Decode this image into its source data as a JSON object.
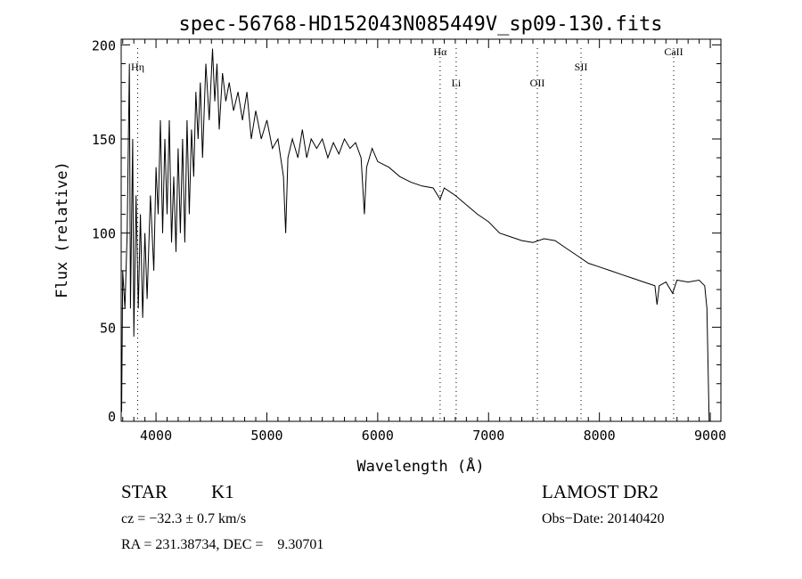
{
  "chart_data": {
    "type": "line",
    "title": "spec-56768-HD152043N085449V_sp09-130.fits",
    "xlabel": "Wavelength (Å)",
    "ylabel": "Flux (relative)",
    "xlim": [
      3686,
      9096
    ],
    "ylim": [
      0,
      203
    ],
    "xticks": [
      4000,
      5000,
      6000,
      7000,
      8000,
      9000
    ],
    "yticks": [
      0,
      50,
      100,
      150,
      200
    ],
    "grid": false,
    "lines": [
      {
        "label": "Hη",
        "wavelength": 3835,
        "label_row": 2
      },
      {
        "label": "Hα",
        "wavelength": 6563,
        "label_row": 1
      },
      {
        "label": "Li",
        "wavelength": 6708,
        "label_row": 3
      },
      {
        "label": "OII",
        "wavelength": 7440,
        "label_row": 3
      },
      {
        "label": "SII",
        "wavelength": 7834,
        "label_row": 2
      },
      {
        "label": "CaII",
        "wavelength": 8670,
        "label_row": 1
      }
    ],
    "series": [
      {
        "name": "spectrum",
        "x": [
          3690,
          3700,
          3720,
          3740,
          3760,
          3770,
          3790,
          3800,
          3820,
          3840,
          3860,
          3880,
          3900,
          3920,
          3950,
          3980,
          4000,
          4020,
          4040,
          4060,
          4080,
          4100,
          4120,
          4140,
          4160,
          4180,
          4200,
          4220,
          4240,
          4260,
          4280,
          4300,
          4320,
          4340,
          4360,
          4380,
          4400,
          4420,
          4450,
          4480,
          4510,
          4530,
          4550,
          4570,
          4600,
          4630,
          4660,
          4700,
          4740,
          4780,
          4820,
          4860,
          4900,
          4950,
          5000,
          5050,
          5100,
          5150,
          5170,
          5190,
          5230,
          5280,
          5320,
          5360,
          5400,
          5450,
          5500,
          5550,
          5600,
          5650,
          5700,
          5750,
          5800,
          5850,
          5880,
          5900,
          5950,
          6000,
          6100,
          6200,
          6300,
          6400,
          6500,
          6563,
          6600,
          6700,
          6800,
          6900,
          7000,
          7100,
          7200,
          7300,
          7400,
          7500,
          7600,
          7700,
          7800,
          7900,
          8000,
          8100,
          8200,
          8300,
          8400,
          8500,
          8520,
          8540,
          8600,
          8660,
          8700,
          8800,
          8900,
          8950,
          8970,
          8990
        ],
        "y": [
          5,
          80,
          60,
          100,
          190,
          60,
          150,
          45,
          120,
          60,
          110,
          55,
          100,
          65,
          120,
          80,
          135,
          110,
          160,
          100,
          150,
          110,
          160,
          95,
          130,
          90,
          145,
          100,
          150,
          95,
          160,
          110,
          155,
          130,
          175,
          150,
          180,
          140,
          190,
          160,
          198,
          170,
          190,
          155,
          185,
          170,
          180,
          165,
          175,
          160,
          175,
          150,
          165,
          150,
          160,
          145,
          150,
          130,
          100,
          140,
          150,
          140,
          155,
          140,
          150,
          145,
          150,
          140,
          148,
          142,
          150,
          145,
          148,
          140,
          110,
          135,
          145,
          138,
          135,
          130,
          127,
          125,
          124,
          118,
          124,
          120,
          115,
          110,
          106,
          100,
          98,
          96,
          95,
          97,
          96,
          92,
          88,
          84,
          82,
          80,
          78,
          76,
          74,
          72,
          62,
          72,
          74,
          68,
          75,
          74,
          75,
          72,
          60,
          0
        ]
      }
    ]
  },
  "info": {
    "class": "STAR",
    "subclass": "K1",
    "survey": "LAMOST DR2",
    "cz": "cz = −32.3 ± 0.7 km/s",
    "obs_date": "Obs−Date: 20140420",
    "coords": "RA = 231.38734, DEC =    9.30701"
  }
}
